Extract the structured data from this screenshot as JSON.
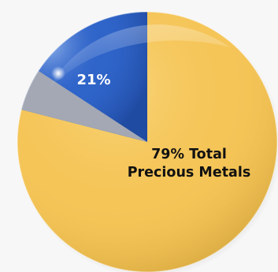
{
  "chart_data": {
    "type": "pie",
    "title": "",
    "slices": [
      {
        "label": "79% Total Precious Metals",
        "value": 79,
        "color": "#f5c558"
      },
      {
        "label": "21%",
        "value": 21,
        "color": "#2f64c9"
      }
    ],
    "slice_labels": {
      "blue": "21%",
      "gold_line1": "79% Total",
      "gold_line2": "Precious Metals"
    },
    "secondary_wedge_color": "#a3a8b4",
    "start_angle_deg": 0,
    "direction": "clockwise",
    "legend": "none",
    "style": "glossy-3d"
  }
}
